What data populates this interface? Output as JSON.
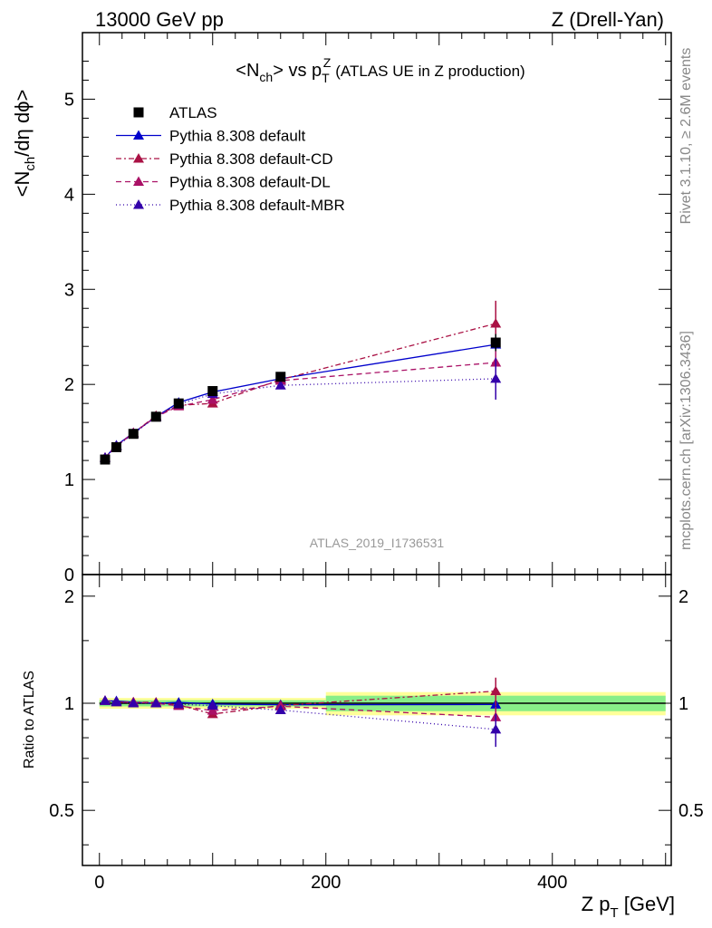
{
  "header": {
    "left": "13000 GeV pp",
    "right": "Z (Drell-Yan)"
  },
  "side": {
    "rivet": "Rivet 3.1.10, ≥ 2.6M events",
    "mcplots": "mcplots.cern.ch [arXiv:1306.3436]"
  },
  "chart_data": {
    "type": "line",
    "title_main": "<N",
    "title_sub1": "ch",
    "title_mid": "> vs p",
    "title_sup": "Z",
    "title_sub2": "T",
    "title_tail": "(ATLAS UE in Z production)",
    "watermark": "ATLAS_2019_I1736531",
    "ylabel": "<N",
    "ylabel_sub": "ch",
    "ylabel_tail": "/dη dϕ>",
    "ratio_ylabel": "Ratio to ATLAS",
    "xlabel": "Z p",
    "xlabel_sub": "T",
    "xlabel_tail": " [GeV]",
    "xlim": [
      -15,
      505
    ],
    "ylim": [
      0,
      5.7
    ],
    "ratio_ylim": [
      0.35,
      2.3
    ],
    "x_ticks": [
      "0",
      "200",
      "400"
    ],
    "y_ticks": [
      "0",
      "1",
      "2",
      "3",
      "4",
      "5"
    ],
    "ratio_ticks": [
      "0.5",
      "1",
      "2"
    ],
    "legend_placement": "top-left",
    "x": [
      5,
      15,
      30,
      50,
      70,
      100,
      160,
      350
    ],
    "bin_edges": [
      0,
      10,
      20,
      40,
      60,
      80,
      120,
      200,
      500
    ],
    "bands": [
      {
        "edges": [
          0,
          200
        ],
        "inner": 0.02,
        "outer": 0.035
      },
      {
        "edges": [
          200,
          500
        ],
        "inner": 0.05,
        "outer": 0.075
      }
    ],
    "series": [
      {
        "name": "ATLAS",
        "color": "#000000",
        "marker": "square",
        "values": [
          1.21,
          1.34,
          1.48,
          1.66,
          1.8,
          1.93,
          2.08,
          2.44
        ],
        "errors": [
          0.02,
          0.02,
          0.02,
          0.02,
          0.02,
          0.03,
          0.04,
          0.09
        ]
      },
      {
        "name": "Pythia 8.308 default",
        "color": "#0000cc",
        "dash": "none",
        "values": [
          1.23,
          1.36,
          1.49,
          1.66,
          1.81,
          1.92,
          2.06,
          2.42
        ],
        "errors": [
          0.01,
          0.01,
          0.01,
          0.01,
          0.02,
          0.02,
          0.04,
          0.12
        ]
      },
      {
        "name": "Pythia 8.308 default-CD",
        "color": "#aa1144",
        "dash": "6,3,2,3",
        "values": [
          1.23,
          1.35,
          1.49,
          1.67,
          1.78,
          1.8,
          2.05,
          2.64
        ],
        "errors": [
          0.01,
          0.01,
          0.01,
          0.01,
          0.02,
          0.02,
          0.05,
          0.24
        ]
      },
      {
        "name": "Pythia 8.308 default-DL",
        "color": "#aa1166",
        "dash": "6,4",
        "values": [
          1.23,
          1.35,
          1.49,
          1.66,
          1.77,
          1.84,
          2.04,
          2.23
        ],
        "errors": [
          0.01,
          0.01,
          0.01,
          0.01,
          0.02,
          0.02,
          0.04,
          0.16
        ]
      },
      {
        "name": "Pythia 8.308 default-MBR",
        "color": "#3300aa",
        "dash": "1,3",
        "values": [
          1.23,
          1.35,
          1.48,
          1.66,
          1.79,
          1.9,
          1.99,
          2.06
        ],
        "errors": [
          0.01,
          0.01,
          0.01,
          0.01,
          0.02,
          0.02,
          0.04,
          0.22
        ]
      }
    ]
  }
}
